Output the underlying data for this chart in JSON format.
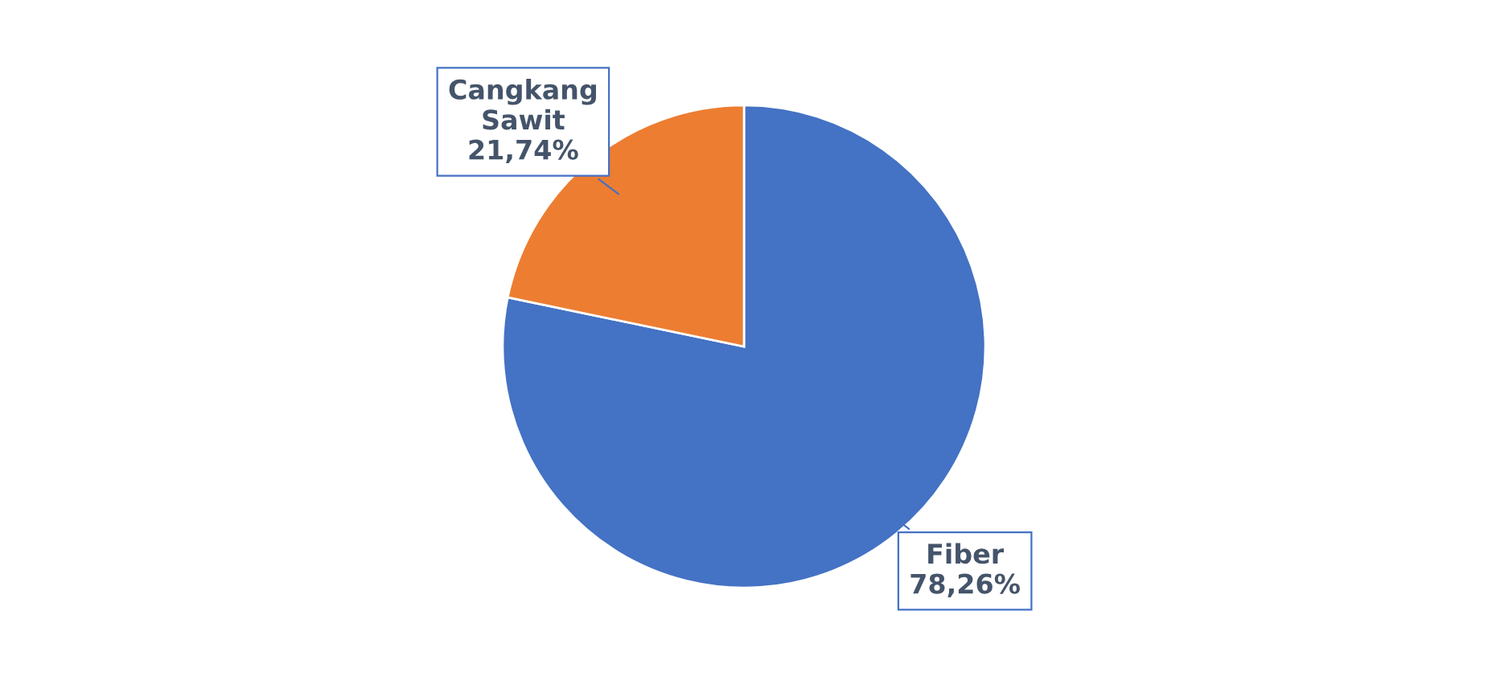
{
  "chart_data": {
    "type": "pie",
    "categories": [
      "Fiber",
      "Cangkang Sawit"
    ],
    "values": [
      78.26,
      21.74
    ],
    "colors": [
      "#4472c4",
      "#ed7d31"
    ],
    "value_labels": [
      "78,26%",
      "21,74%"
    ]
  }
}
